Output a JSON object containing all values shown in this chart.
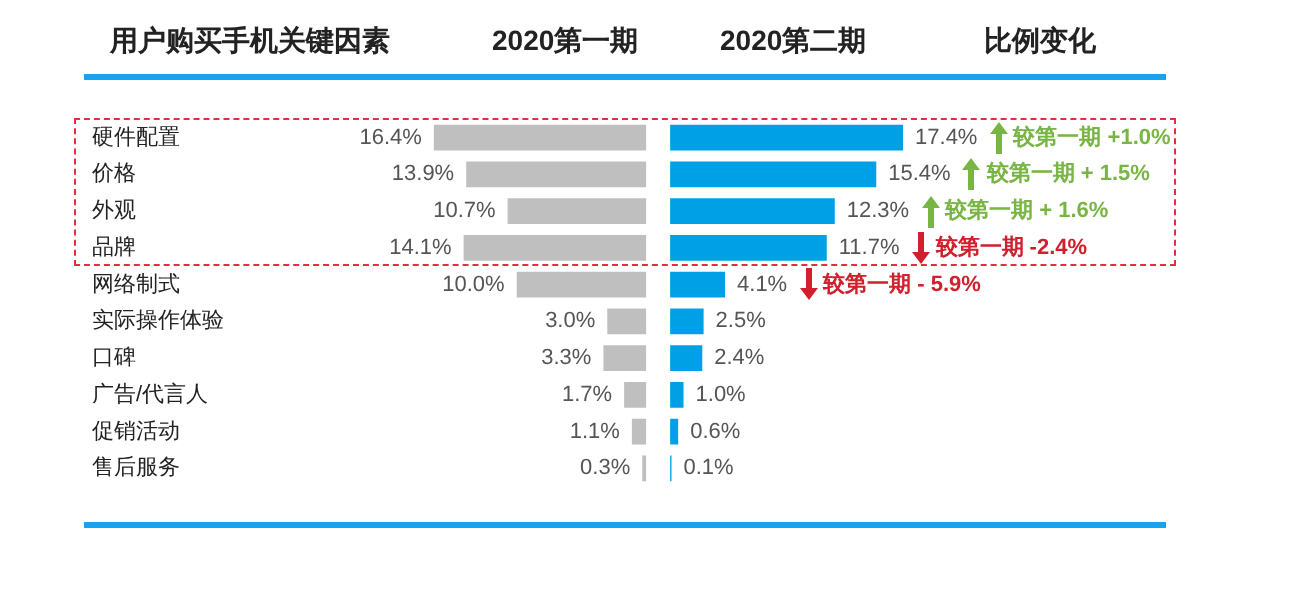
{
  "chart_data": [
    {
      "type": "bar",
      "orientation": "horizontal",
      "title": "用户购买手机关键因素",
      "tick_labels": "y",
      "categories": [
        "硬件配置",
        "价格",
        "外观",
        "品牌",
        "网络制式",
        "实际操作体验",
        "口碑",
        "广告/代言人",
        "促销活动",
        "售后服务"
      ],
      "series": [
        {
          "name": "2020第一期",
          "color": "#bfbfbf",
          "values": [
            16.4,
            13.9,
            10.7,
            14.1,
            10.0,
            3.0,
            3.3,
            1.7,
            1.1,
            0.3
          ],
          "value_labels": [
            "16.4%",
            "13.9%",
            "10.7%",
            "14.1%",
            "10.0%",
            "3.0%",
            "3.3%",
            "1.7%",
            "1.1%",
            "0.3%"
          ]
        }
      ]
    },
    {
      "type": "bar",
      "orientation": "horizontal",
      "tick_labels": false,
      "categories": [
        null,
        null,
        null,
        null,
        null,
        null,
        null,
        null,
        null,
        null
      ],
      "series": [
        {
          "name": "2020第二期",
          "color": "#00a0e6",
          "values": [
            17.4,
            15.4,
            12.3,
            11.7,
            4.1,
            2.5,
            2.4,
            1.0,
            0.6,
            0.1
          ],
          "value_labels": [
            "17.4%",
            "15.4%",
            "12.3%",
            "11.7%",
            "4.1%",
            "2.5%",
            "2.4%",
            "1.0%",
            "0.6%",
            "0.1%"
          ]
        }
      ],
      "annotations": [
        "比例变化",
        "较第一期 +1.0%",
        "较第一期 + 1.5%",
        "较第一期 + 1.6%",
        "较第一期 -2.4%",
        "较第一期 - 5.9%"
      ]
    }
  ]
}
